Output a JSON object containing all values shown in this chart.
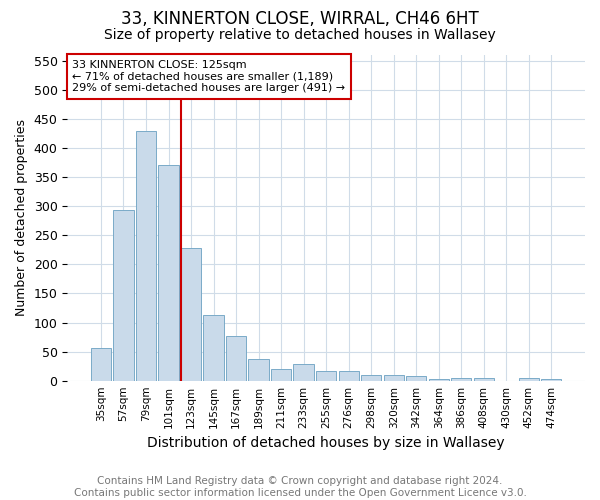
{
  "title1": "33, KINNERTON CLOSE, WIRRAL, CH46 6HT",
  "title2": "Size of property relative to detached houses in Wallasey",
  "xlabel": "Distribution of detached houses by size in Wallasey",
  "ylabel": "Number of detached properties",
  "bin_labels": [
    "35sqm",
    "57sqm",
    "79sqm",
    "101sqm",
    "123sqm",
    "145sqm",
    "167sqm",
    "189sqm",
    "211sqm",
    "233sqm",
    "255sqm",
    "276sqm",
    "298sqm",
    "320sqm",
    "342sqm",
    "364sqm",
    "386sqm",
    "408sqm",
    "430sqm",
    "452sqm",
    "474sqm"
  ],
  "bar_heights": [
    57,
    293,
    430,
    370,
    228,
    113,
    77,
    38,
    20,
    28,
    17,
    17,
    10,
    9,
    8,
    3,
    5,
    5,
    0,
    5,
    3
  ],
  "bar_color": "#c9daea",
  "bar_edge_color": "#7aaac8",
  "vline_color": "#cc0000",
  "annotation_text": "33 KINNERTON CLOSE: 125sqm\n← 71% of detached houses are smaller (1,189)\n29% of semi-detached houses are larger (491) →",
  "annotation_box_color": "#ffffff",
  "annotation_edge_color": "#cc0000",
  "ylim": [
    0,
    560
  ],
  "yticks": [
    0,
    50,
    100,
    150,
    200,
    250,
    300,
    350,
    400,
    450,
    500,
    550
  ],
  "footer_text": "Contains HM Land Registry data © Crown copyright and database right 2024.\nContains public sector information licensed under the Open Government Licence v3.0.",
  "bg_color": "#ffffff",
  "grid_color": "#d0dce8",
  "title1_fontsize": 12,
  "title2_fontsize": 10,
  "xlabel_fontsize": 10,
  "ylabel_fontsize": 9,
  "footer_fontsize": 7.5,
  "annot_fontsize": 8
}
